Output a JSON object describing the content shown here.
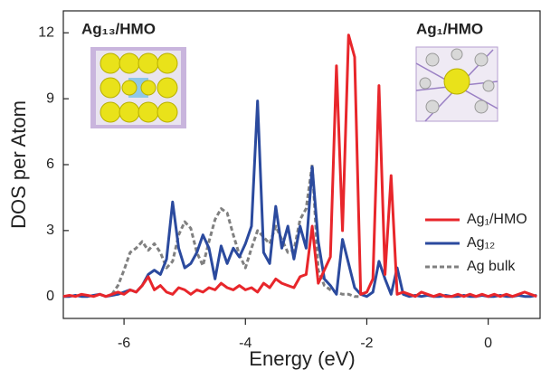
{
  "chart_data": {
    "type": "line",
    "xlabel": "Energy (eV)",
    "ylabel": "DOS per Atom",
    "annotations": [
      {
        "text": "Ag₁₃/HMO",
        "color": "#222222"
      },
      {
        "text": "Ag₁/HMO",
        "color": "#e8262b"
      }
    ],
    "x": [
      -7.0,
      -6.9,
      -6.8,
      -6.7,
      -6.6,
      -6.5,
      -6.4,
      -6.3,
      -6.2,
      -6.1,
      -6.0,
      -5.9,
      -5.8,
      -5.7,
      -5.6,
      -5.5,
      -5.4,
      -5.3,
      -5.2,
      -5.1,
      -5.0,
      -4.9,
      -4.8,
      -4.7,
      -4.6,
      -4.5,
      -4.4,
      -4.3,
      -4.2,
      -4.1,
      -4.0,
      -3.9,
      -3.8,
      -3.7,
      -3.6,
      -3.5,
      -3.4,
      -3.3,
      -3.2,
      -3.1,
      -3.0,
      -2.9,
      -2.8,
      -2.7,
      -2.6,
      -2.5,
      -2.4,
      -2.3,
      -2.2,
      -2.1,
      -2.0,
      -1.9,
      -1.8,
      -1.7,
      -1.6,
      -1.5,
      -1.4,
      -1.3,
      -1.2,
      -1.1,
      -1.0,
      -0.9,
      -0.8,
      -0.7,
      -0.6,
      -0.5,
      -0.4,
      -0.3,
      -0.2,
      -0.1,
      0.0,
      0.1,
      0.2,
      0.3,
      0.4,
      0.5,
      0.6,
      0.7,
      0.8
    ],
    "series": [
      {
        "name": "Ag₁/HMO",
        "color": "#e8262b",
        "dash": false,
        "values": [
          0.0,
          0.05,
          0.0,
          0.1,
          0.05,
          0.0,
          0.1,
          0.0,
          0.1,
          0.2,
          0.1,
          0.3,
          0.2,
          0.5,
          0.9,
          0.3,
          0.5,
          0.2,
          0.1,
          0.4,
          0.3,
          0.1,
          0.3,
          0.2,
          0.4,
          0.3,
          0.6,
          0.4,
          0.3,
          0.5,
          0.3,
          0.4,
          0.2,
          0.6,
          0.4,
          0.8,
          0.6,
          0.5,
          0.4,
          0.9,
          1.0,
          3.2,
          0.6,
          1.2,
          1.8,
          10.5,
          3.0,
          11.9,
          10.9,
          0.1,
          0.2,
          0.8,
          9.6,
          1.0,
          5.5,
          0.1,
          0.2,
          0.1,
          0.0,
          0.2,
          0.1,
          0.0,
          0.1,
          0.0,
          0.0,
          0.1,
          0.0,
          0.1,
          0.0,
          0.1,
          0.0,
          0.1,
          0.0,
          0.1,
          0.0,
          0.1,
          0.2,
          0.1,
          0.0
        ]
      },
      {
        "name": "Ag₁₂",
        "color": "#2b4a9e",
        "dash": false,
        "values": [
          0.0,
          0.0,
          0.05,
          0.0,
          0.0,
          0.05,
          0.1,
          0.0,
          0.05,
          0.1,
          0.2,
          0.3,
          0.2,
          0.5,
          1.0,
          1.2,
          1.0,
          1.7,
          4.3,
          2.2,
          1.3,
          1.5,
          2.0,
          2.8,
          2.2,
          0.8,
          2.3,
          1.5,
          2.2,
          1.8,
          2.4,
          3.2,
          8.9,
          2.0,
          1.5,
          4.1,
          2.2,
          3.2,
          1.7,
          3.2,
          2.2,
          5.9,
          2.5,
          0.8,
          0.5,
          0.1,
          2.6,
          1.5,
          0.4,
          0.1,
          0.0,
          0.2,
          1.6,
          0.8,
          0.1,
          1.3,
          0.1,
          0.0,
          0.05,
          0.0,
          0.05,
          0.0,
          0.0,
          0.05,
          0.0,
          0.0,
          0.05,
          0.0,
          0.0,
          0.05,
          0.0,
          0.0,
          0.05,
          0.0,
          0.0,
          0.05,
          0.0,
          0.0,
          0.05
        ]
      },
      {
        "name": "Ag bulk",
        "color": "#808080",
        "dash": true,
        "values": [
          null,
          null,
          null,
          null,
          null,
          null,
          null,
          null,
          0.1,
          0.5,
          1.2,
          2.0,
          2.2,
          2.5,
          2.1,
          2.4,
          2.0,
          1.3,
          1.6,
          2.8,
          3.4,
          3.1,
          2.0,
          1.4,
          2.5,
          3.5,
          4.0,
          3.8,
          2.8,
          1.9,
          1.3,
          2.2,
          3.0,
          2.7,
          2.4,
          3.2,
          2.6,
          2.0,
          2.1,
          3.5,
          4.0,
          6.0,
          1.2,
          0.5,
          0.3,
          0.2,
          0.1,
          0.1,
          0.0,
          0.0,
          null,
          null,
          null,
          null,
          null,
          null,
          null,
          null,
          null,
          null,
          null,
          null,
          null,
          null,
          null,
          null,
          null,
          null,
          null,
          null,
          null,
          null,
          null,
          null,
          null,
          null,
          null,
          null,
          null
        ]
      }
    ],
    "xlim": [
      -7.0,
      0.87
    ],
    "ylim": [
      -1.0,
      13.0
    ],
    "xticks": [
      -6,
      -4,
      -2,
      0
    ],
    "yticks": [
      0,
      3,
      6,
      9,
      12
    ],
    "legend": "right"
  }
}
